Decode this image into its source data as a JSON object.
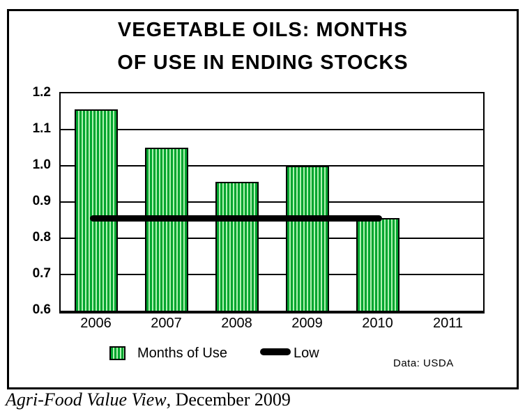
{
  "title": {
    "line1": "VEGETABLE OILS: MONTHS",
    "line2": "OF USE IN ENDING STOCKS"
  },
  "chart_data": {
    "type": "bar",
    "title": "VEGETABLE OILS: MONTHS OF USE IN ENDING STOCKS",
    "categories": [
      "2006",
      "2007",
      "2008",
      "2009",
      "2010",
      "2011"
    ],
    "series": [
      {
        "name": "Months of Use",
        "type": "bar",
        "values": [
          1.155,
          1.05,
          0.955,
          1.0,
          0.855,
          null
        ]
      },
      {
        "name": "Low",
        "type": "line",
        "value": 0.855
      }
    ],
    "ylim": [
      0.6,
      1.2
    ],
    "ytick_step": 0.1,
    "yticks": [
      "1.2",
      "1.1",
      "1.0",
      "0.9",
      "0.8",
      "0.7",
      "0.6"
    ],
    "grid": true,
    "legend_position": "bottom",
    "colors": {
      "bar_green": "#00a52f",
      "bar_stripe": "#b2f3b2",
      "line_black": "#000000"
    }
  },
  "source": "Data: USDA",
  "caption": {
    "italic": "Agri-Food Value View",
    "rest": ", December 2009"
  }
}
